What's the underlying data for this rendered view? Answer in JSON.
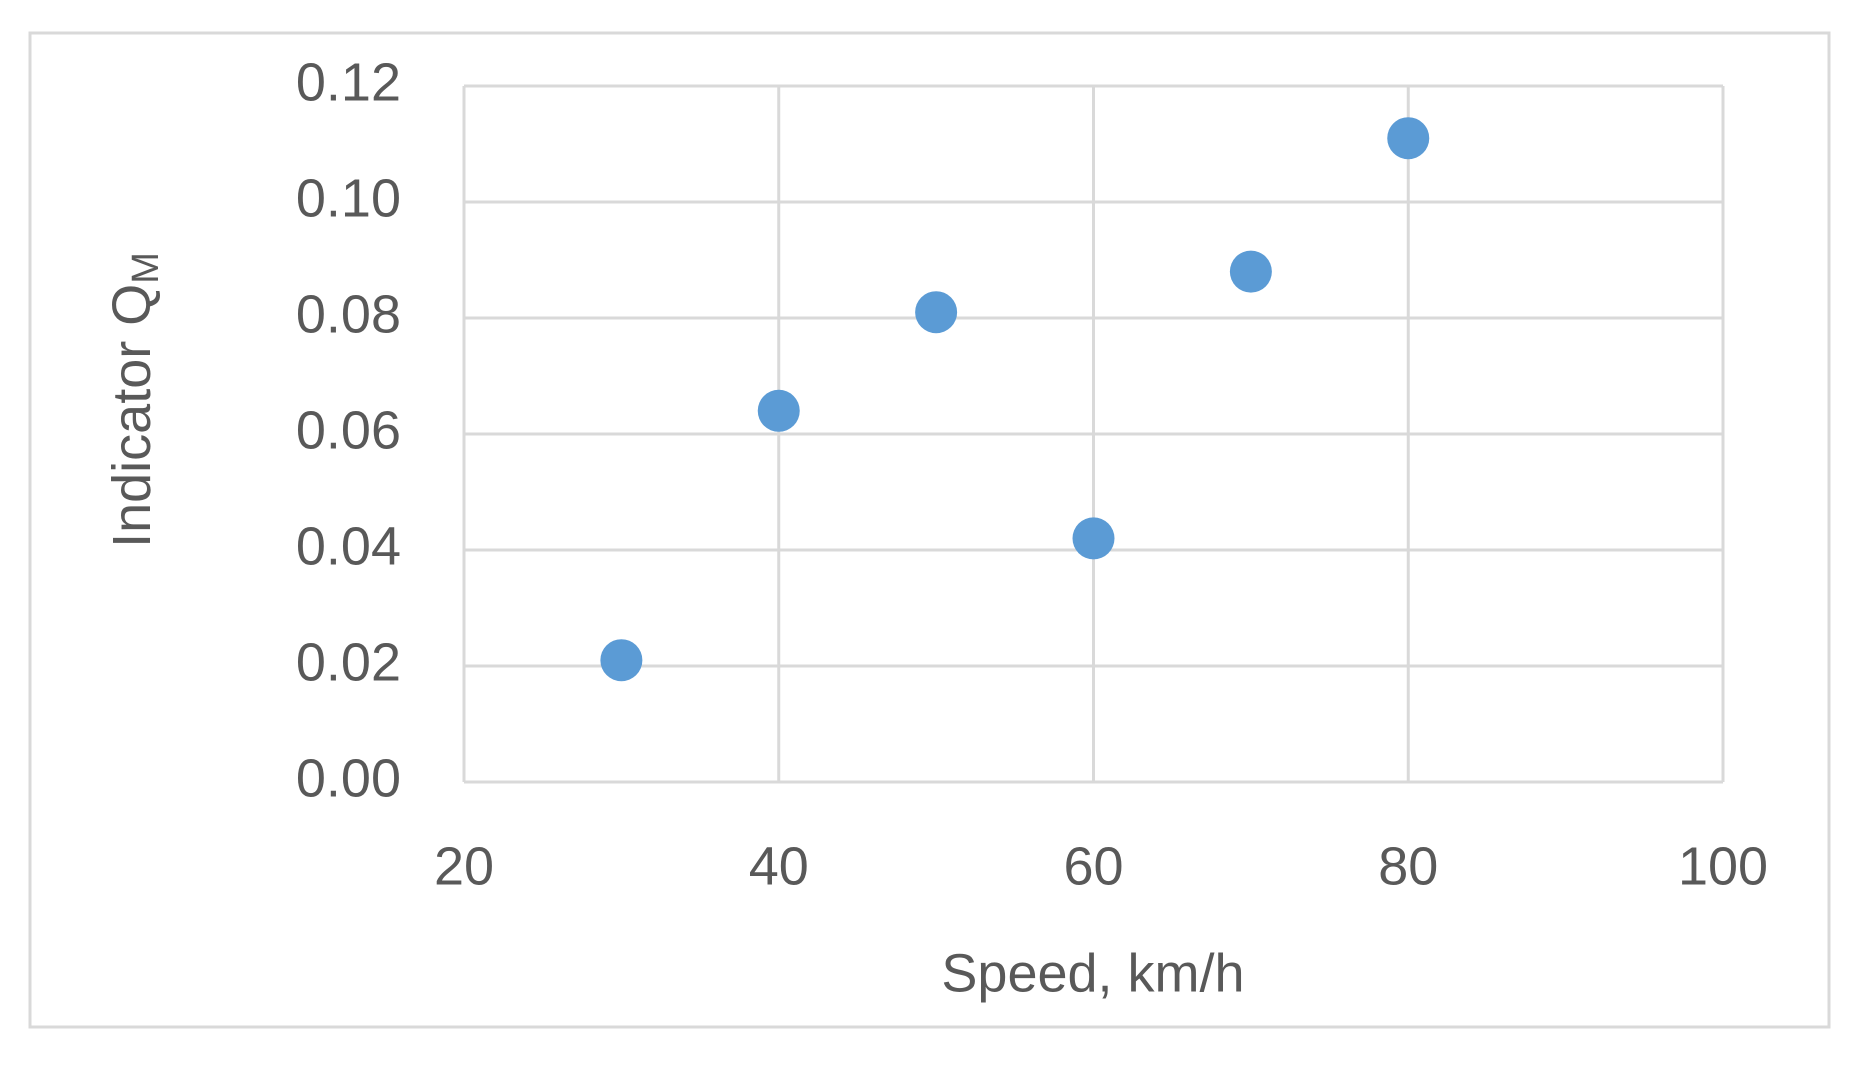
{
  "chart_data": {
    "type": "scatter",
    "x_label": "Speed, km/h",
    "y_label": "Indicator Q",
    "y_label_subscript": "M",
    "x": [
      30,
      40,
      50,
      60,
      70,
      80
    ],
    "series": [
      {
        "color": "#5b9bd5",
        "values": [
          0.021,
          0.064,
          0.081,
          0.042,
          0.088,
          0.111
        ]
      }
    ],
    "xlim": [
      20,
      100
    ],
    "xticks": [
      20,
      40,
      60,
      80,
      100
    ],
    "ylim": [
      0,
      0.12
    ],
    "yticks": [
      {
        "value": 0,
        "label": "0.00"
      },
      0.02,
      0.04,
      0.06,
      0.08,
      {
        "value": 0.1,
        "label": "0.10"
      },
      0.12
    ],
    "grid": true
  }
}
